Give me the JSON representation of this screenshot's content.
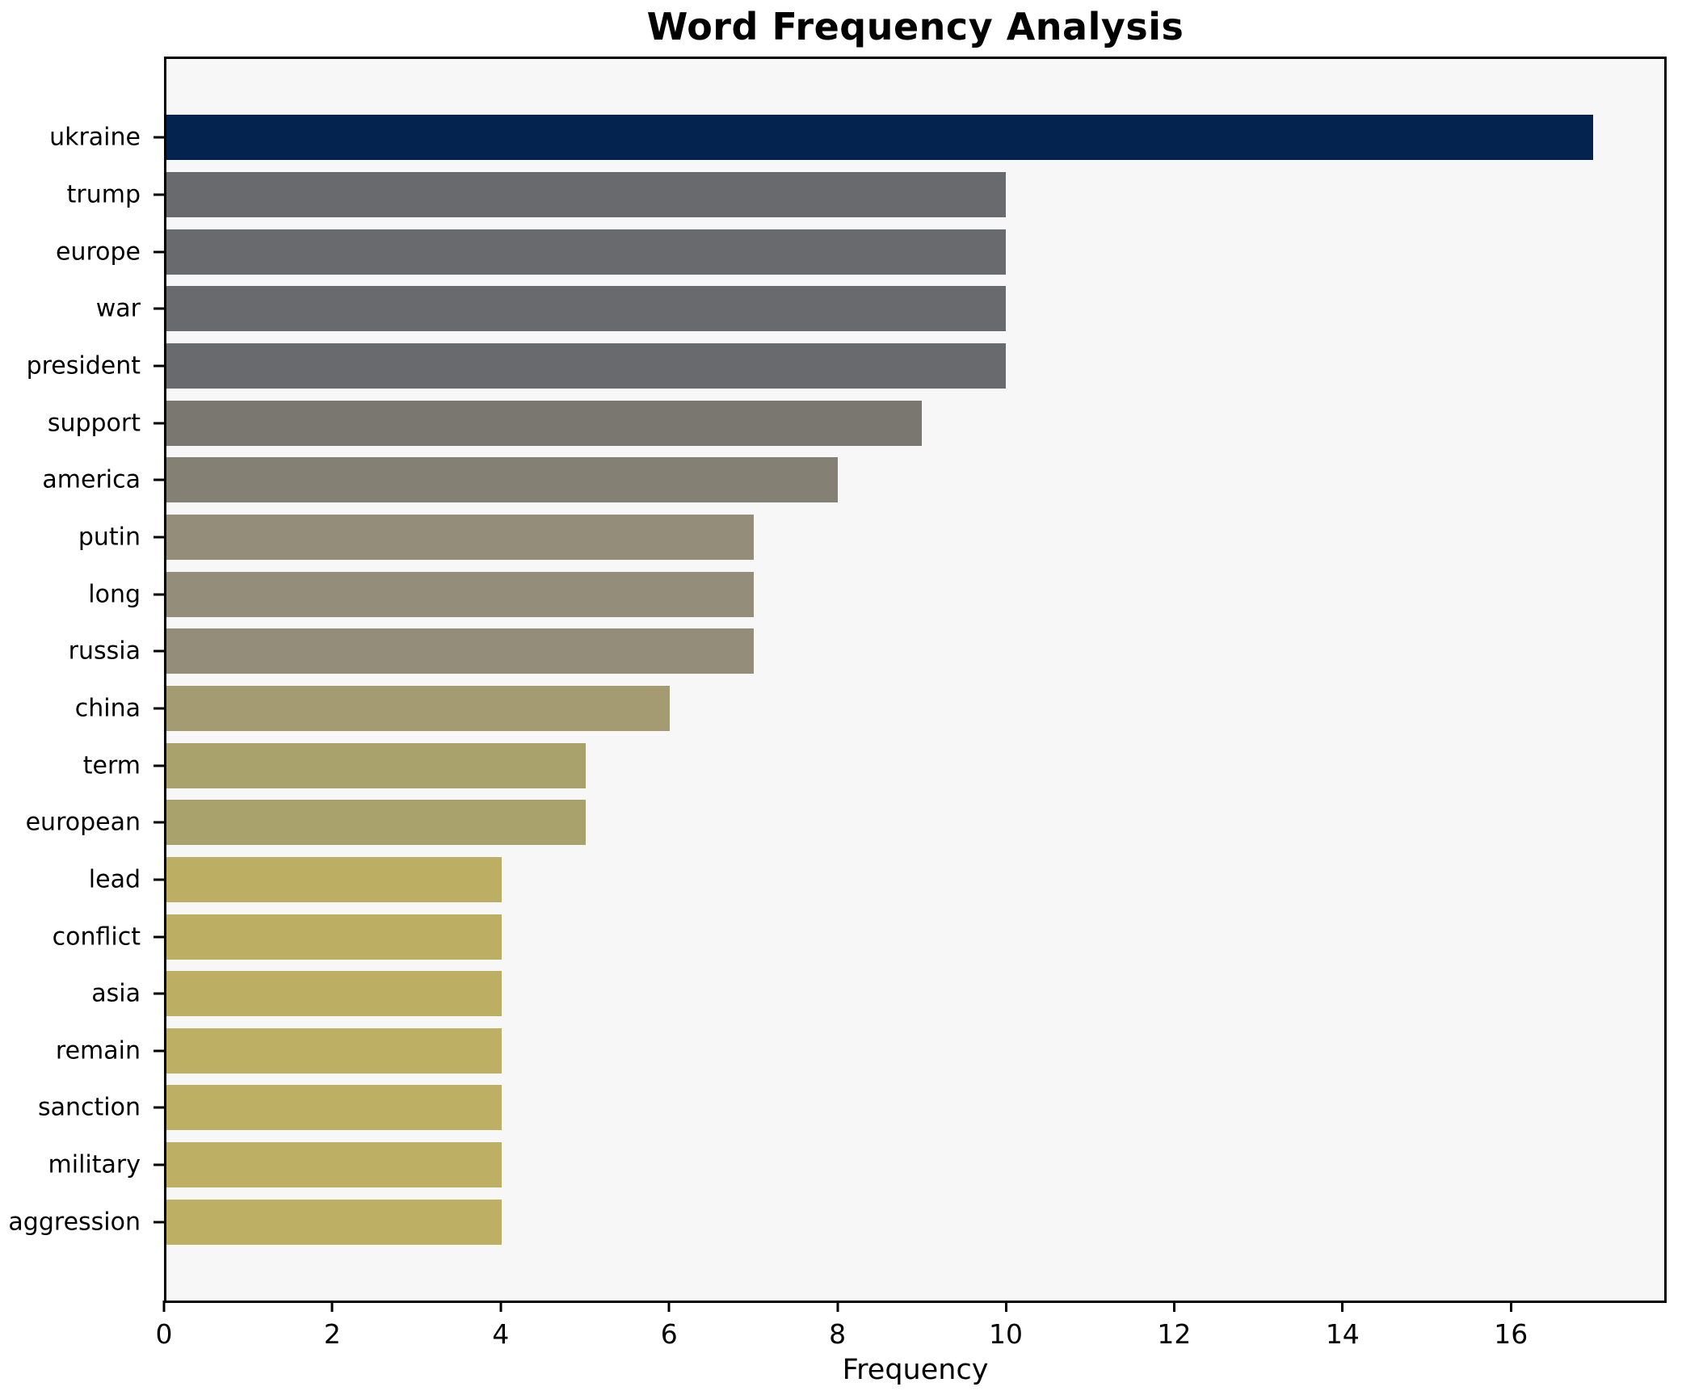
{
  "chart_data": {
    "type": "bar",
    "orientation": "horizontal",
    "title": "Word Frequency Analysis",
    "xlabel": "Frequency",
    "ylabel": "",
    "categories": [
      "ukraine",
      "trump",
      "europe",
      "war",
      "president",
      "support",
      "america",
      "putin",
      "long",
      "russia",
      "china",
      "term",
      "european",
      "lead",
      "conflict",
      "asia",
      "remain",
      "sanction",
      "military",
      "aggression"
    ],
    "values": [
      17,
      10,
      10,
      10,
      10,
      9,
      8,
      7,
      7,
      7,
      6,
      5,
      5,
      4,
      4,
      4,
      4,
      4,
      4,
      4
    ],
    "bar_colors": [
      "#04234f",
      "#696a6e",
      "#696a6e",
      "#696a6e",
      "#696a6e",
      "#7a7771",
      "#858074",
      "#948d79",
      "#948d79",
      "#948d79",
      "#a49b72",
      "#aaa26c",
      "#aaa26c",
      "#bcae63",
      "#bcae63",
      "#bcae63",
      "#bdb064",
      "#bdb064",
      "#bdb064",
      "#bdb064"
    ],
    "xticks": [
      0,
      2,
      4,
      6,
      8,
      10,
      12,
      14,
      16
    ],
    "xlim": [
      0,
      17.85
    ],
    "grid": false,
    "legend": null,
    "plot_background": "#f7f7f7",
    "spine_color": "#000000",
    "text_color": "#000000"
  }
}
